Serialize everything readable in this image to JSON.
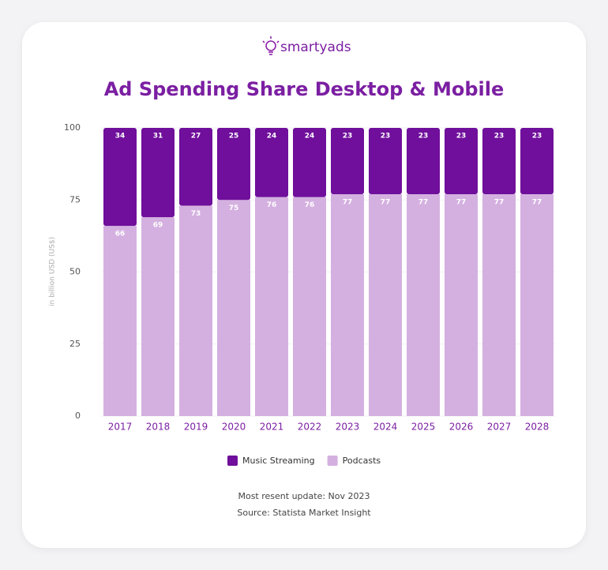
{
  "brand": "smartyads",
  "chart_data": {
    "type": "stacked-bar",
    "title": "Ad Spending Share Desktop & Mobile",
    "y_label": "in billion USD (US$)",
    "categories": [
      "2017",
      "2018",
      "2019",
      "2020",
      "2021",
      "2022",
      "2023",
      "2024",
      "2025",
      "2026",
      "2027",
      "2028"
    ],
    "series": [
      {
        "name": "Podcasts",
        "color": "#d4b0e0",
        "values": [
          66,
          69,
          73,
          75,
          76,
          76,
          77,
          77,
          77,
          77,
          77,
          77
        ]
      },
      {
        "name": "Music Streaming",
        "color": "#6f0f9b",
        "values": [
          34,
          31,
          27,
          25,
          24,
          24,
          23,
          23,
          23,
          23,
          23,
          23
        ]
      }
    ],
    "legend_order": [
      1,
      0
    ],
    "ylim": [
      0,
      100
    ],
    "yticks": [
      0,
      25,
      50,
      75,
      100
    ],
    "grid": true
  },
  "footer": {
    "update": "Most resent update: Nov 2023",
    "source": "Source: Statista Market Insight"
  }
}
